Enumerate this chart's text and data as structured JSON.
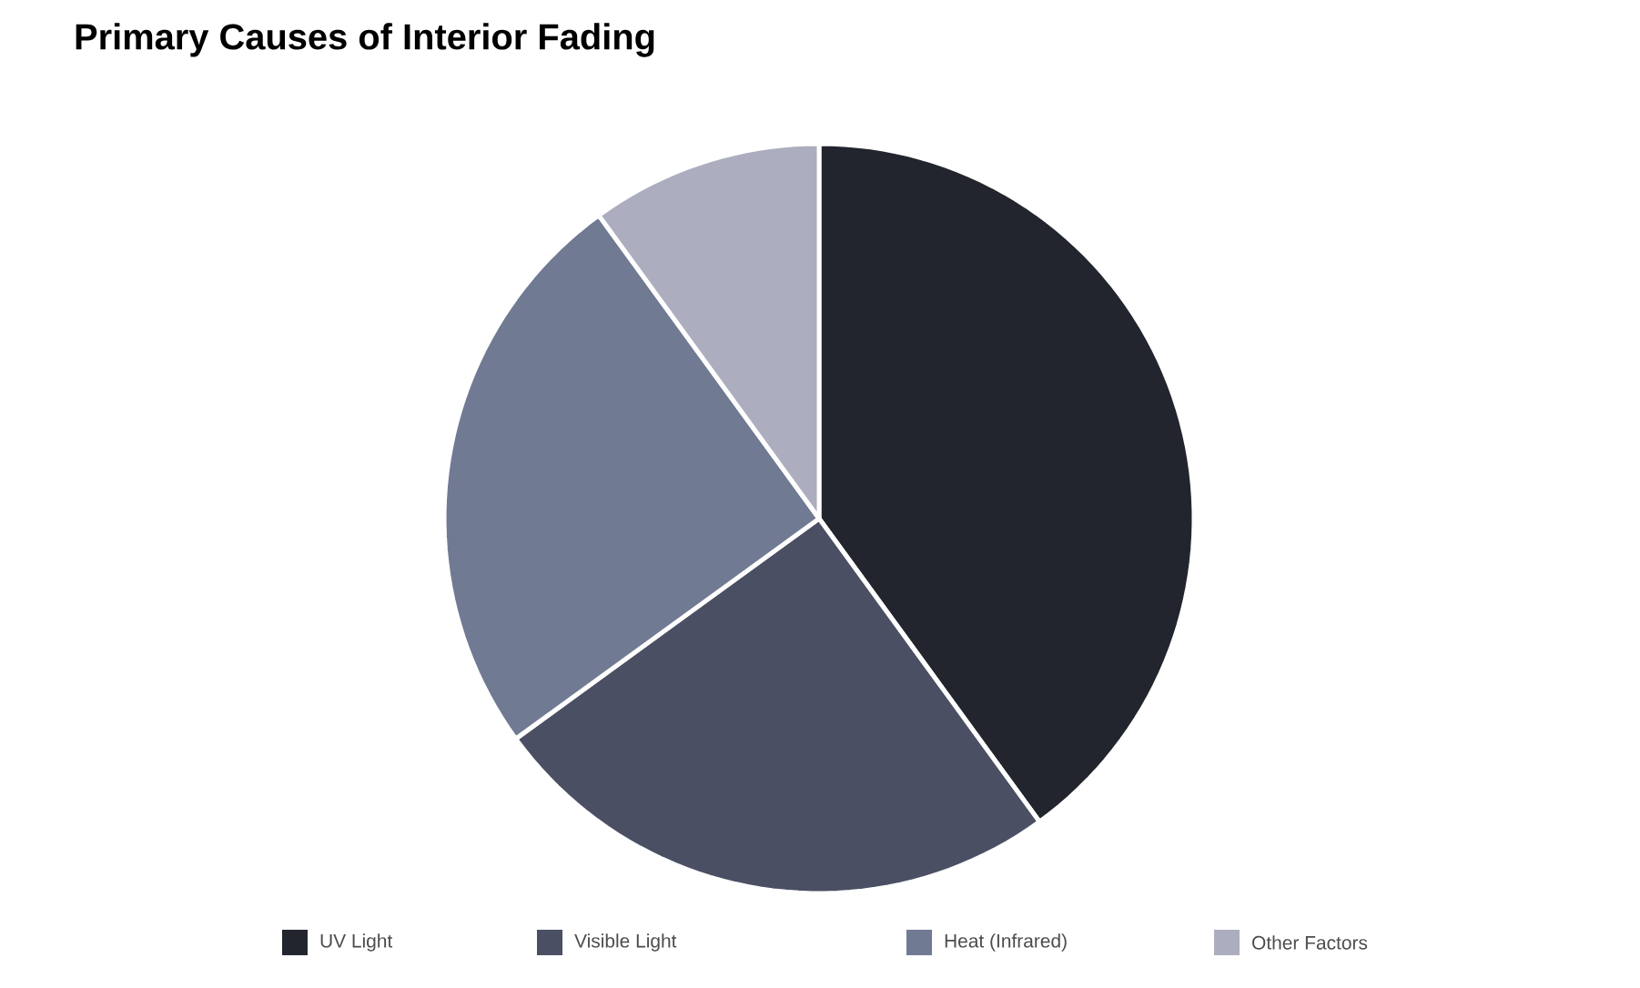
{
  "chart_data": {
    "type": "pie",
    "title": "Primary Causes of Interior Fading",
    "categories": [
      "UV Light",
      "Visible Light",
      "Heat (Infrared)",
      "Other Factors"
    ],
    "values": [
      40,
      25,
      25,
      10
    ],
    "colors": [
      "#22252d",
      "#4a4f63",
      "#717a93",
      "#acaebf"
    ],
    "legend": "bottom"
  }
}
